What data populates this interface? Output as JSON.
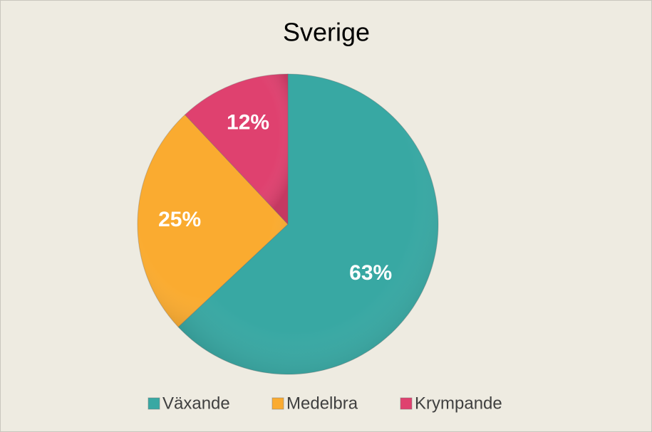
{
  "chart_data": {
    "type": "pie",
    "title": "Sverige",
    "categories": [
      "Växande",
      "Medelbra",
      "Krympande"
    ],
    "values": [
      63,
      25,
      12
    ],
    "value_labels": [
      "63%",
      "25%",
      "12%"
    ],
    "colors": [
      "#38a8a3",
      "#faab30",
      "#df416f"
    ],
    "legend": "bottom"
  }
}
